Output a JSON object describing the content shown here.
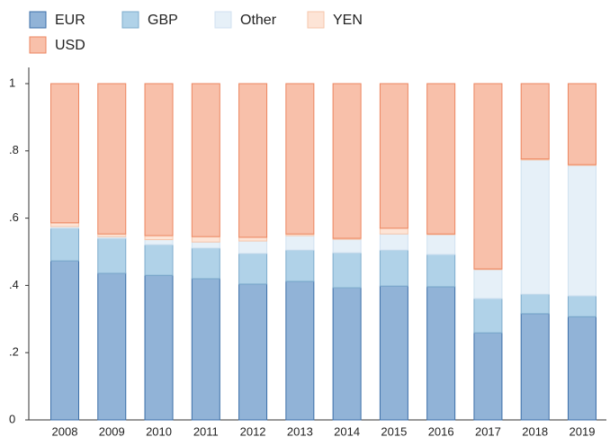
{
  "chart_data": {
    "type": "stacked_bar",
    "categories": [
      "2008",
      "2009",
      "2010",
      "2011",
      "2012",
      "2013",
      "2014",
      "2015",
      "2016",
      "2017",
      "2018",
      "2019"
    ],
    "series": [
      {
        "name": "EUR",
        "color": "#91b3d7",
        "stroke": "#3c6fa8",
        "values": [
          0.473,
          0.436,
          0.43,
          0.42,
          0.404,
          0.412,
          0.393,
          0.398,
          0.396,
          0.259,
          0.316,
          0.307
        ]
      },
      {
        "name": "GBP",
        "color": "#b0d2e8",
        "stroke": "#7eaccd",
        "values": [
          0.097,
          0.104,
          0.091,
          0.091,
          0.091,
          0.093,
          0.104,
          0.107,
          0.096,
          0.102,
          0.058,
          0.062
        ]
      },
      {
        "name": "Other",
        "color": "#e6f0f8",
        "stroke": "#d0e1f0",
        "values": [
          0.005,
          0.005,
          0.015,
          0.018,
          0.037,
          0.043,
          0.04,
          0.048,
          0.059,
          0.086,
          0.399,
          0.388
        ]
      },
      {
        "name": "YEN",
        "color": "#fde4d6",
        "stroke": "#f6c5aa",
        "values": [
          0.011,
          0.008,
          0.012,
          0.016,
          0.011,
          0.005,
          0.003,
          0.017,
          0.002,
          0.002,
          0.003,
          0.002
        ]
      },
      {
        "name": "USD",
        "color": "#f8c0aa",
        "stroke": "#ec8660",
        "values": [
          0.414,
          0.447,
          0.452,
          0.455,
          0.457,
          0.447,
          0.46,
          0.43,
          0.447,
          0.551,
          0.224,
          0.241
        ]
      }
    ],
    "ylim": [
      0,
      1
    ],
    "yticks": [
      0,
      {
        "value": 0.2,
        "label": ".2"
      },
      {
        "value": 0.4,
        "label": ".4"
      },
      {
        "value": 0.6,
        "label": ".6"
      },
      {
        "value": 0.8,
        "label": ".8"
      },
      1
    ]
  }
}
